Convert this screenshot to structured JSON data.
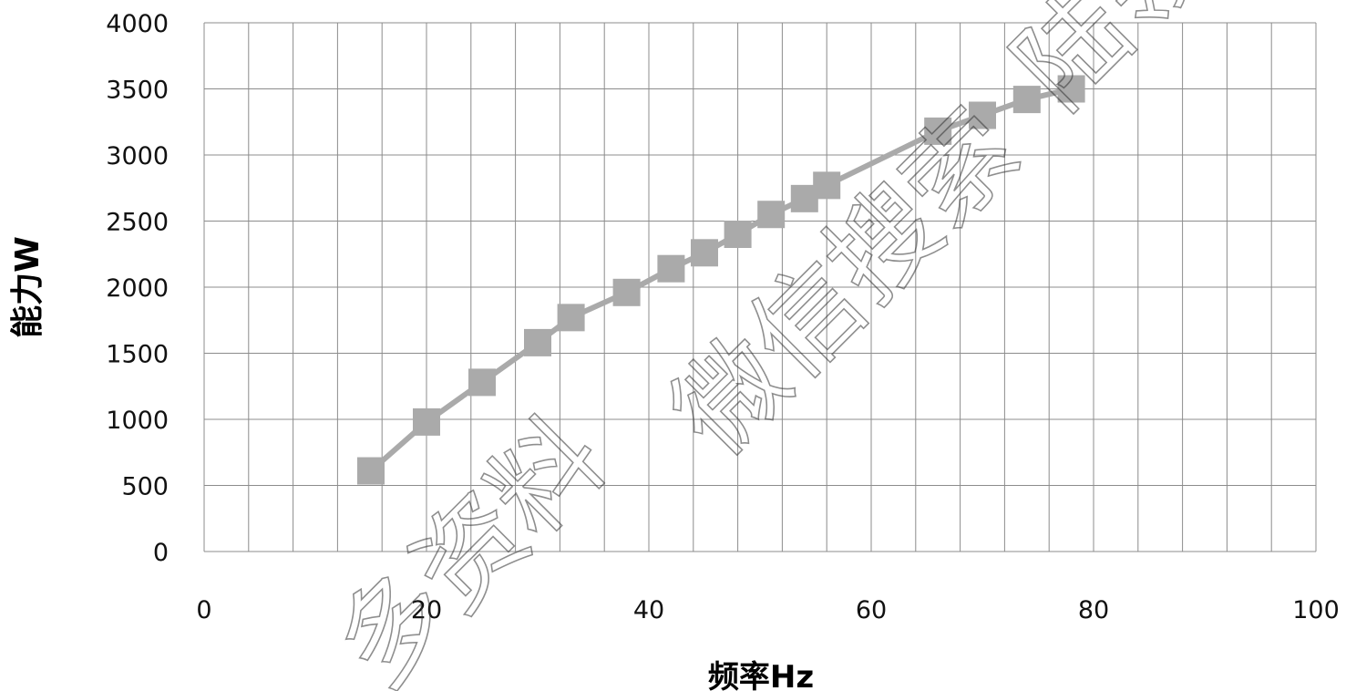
{
  "chart_data": {
    "type": "line",
    "xlabel": "频率Hz",
    "ylabel": "能力W",
    "xlim": [
      0,
      100
    ],
    "ylim": [
      0,
      4000
    ],
    "x_ticks": [
      "0",
      "20",
      "40",
      "60",
      "80",
      "100"
    ],
    "y_ticks": [
      "0",
      "500",
      "1000",
      "1500",
      "2000",
      "2500",
      "3000",
      "3500",
      "4000"
    ],
    "grid": true,
    "marker": "square",
    "series_color": "#aaaaaa",
    "series": [
      {
        "x": [
          15,
          20,
          25,
          30,
          33,
          38,
          42,
          45,
          48,
          51,
          54,
          56,
          66,
          70,
          74,
          78
        ],
        "values": [
          610,
          980,
          1280,
          1580,
          1770,
          1960,
          2140,
          2260,
          2400,
          2550,
          2670,
          2770,
          3180,
          3300,
          3420,
          3500
        ]
      }
    ]
  },
  "watermark": {
    "text": "多资料 微信搜索'陆领'",
    "segments": [
      "多资料",
      "微信搜索",
      "陆领"
    ]
  }
}
